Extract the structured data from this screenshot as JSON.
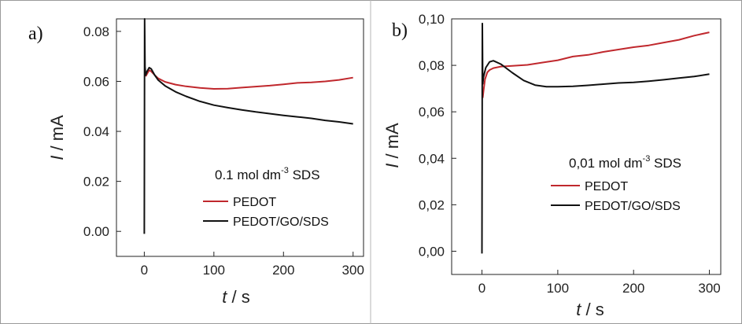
{
  "chart_data": [
    {
      "panel": "a)",
      "type": "line",
      "annotation": {
        "main": "0.1 mol dm",
        "sup": "-3",
        "tail": " SDS"
      },
      "xlabel": {
        "var": "t",
        "unit": " / s"
      },
      "ylabel": {
        "var": "I",
        "unit": " / mA"
      },
      "xlim": [
        -40,
        315
      ],
      "ylim": [
        -0.01,
        0.085
      ],
      "xticks": [
        {
          "v": 0,
          "label": "0"
        },
        {
          "v": 100,
          "label": "100"
        },
        {
          "v": 200,
          "label": "200"
        },
        {
          "v": 300,
          "label": "300"
        }
      ],
      "yticks": [
        {
          "v": 0.0,
          "label": "0.00"
        },
        {
          "v": 0.02,
          "label": "0.02"
        },
        {
          "v": 0.04,
          "label": "0.04"
        },
        {
          "v": 0.06,
          "label": "0.06"
        },
        {
          "v": 0.08,
          "label": "0.08"
        }
      ],
      "series": [
        {
          "name": "PEDOT",
          "color": "#c0282d",
          "points": [
            [
              2,
              0.062
            ],
            [
              4,
              0.063
            ],
            [
              7,
              0.0645
            ],
            [
              10,
              0.064
            ],
            [
              15,
              0.0625
            ],
            [
              20,
              0.0612
            ],
            [
              30,
              0.0598
            ],
            [
              45,
              0.0587
            ],
            [
              60,
              0.058
            ],
            [
              80,
              0.0574
            ],
            [
              100,
              0.057
            ],
            [
              120,
              0.0571
            ],
            [
              140,
              0.0575
            ],
            [
              160,
              0.0579
            ],
            [
              180,
              0.0583
            ],
            [
              200,
              0.0588
            ],
            [
              220,
              0.0594
            ],
            [
              240,
              0.0596
            ],
            [
              260,
              0.06
            ],
            [
              280,
              0.0606
            ],
            [
              300,
              0.0615
            ]
          ]
        },
        {
          "name": "PEDOT/GO/SDS",
          "color": "#111111",
          "points": [
            [
              0,
              -0.001
            ],
            [
              0.5,
              0.085
            ],
            [
              1,
              0.066
            ],
            [
              2,
              0.0625
            ],
            [
              4,
              0.064
            ],
            [
              7,
              0.0655
            ],
            [
              10,
              0.065
            ],
            [
              15,
              0.0625
            ],
            [
              20,
              0.0605
            ],
            [
              30,
              0.0582
            ],
            [
              45,
              0.0558
            ],
            [
              60,
              0.054
            ],
            [
              80,
              0.052
            ],
            [
              100,
              0.0505
            ],
            [
              120,
              0.0495
            ],
            [
              140,
              0.0486
            ],
            [
              160,
              0.0478
            ],
            [
              180,
              0.0471
            ],
            [
              200,
              0.0464
            ],
            [
              220,
              0.0458
            ],
            [
              240,
              0.0452
            ],
            [
              260,
              0.0444
            ],
            [
              280,
              0.0438
            ],
            [
              300,
              0.043
            ]
          ]
        }
      ]
    },
    {
      "panel": "b)",
      "type": "line",
      "annotation": {
        "main": "0,01 mol dm",
        "sup": "-3",
        "tail": " SDS"
      },
      "xlabel": {
        "var": "t",
        "unit": " / s"
      },
      "ylabel": {
        "var": "I",
        "unit": " / mA"
      },
      "xlim": [
        -40,
        315
      ],
      "ylim": [
        -0.01,
        0.1
      ],
      "xticks": [
        {
          "v": 0,
          "label": "0"
        },
        {
          "v": 100,
          "label": "100"
        },
        {
          "v": 200,
          "label": "200"
        },
        {
          "v": 300,
          "label": "300"
        }
      ],
      "yticks": [
        {
          "v": 0.0,
          "label": "0,00"
        },
        {
          "v": 0.02,
          "label": "0,02"
        },
        {
          "v": 0.04,
          "label": "0,04"
        },
        {
          "v": 0.06,
          "label": "0,06"
        },
        {
          "v": 0.08,
          "label": "0,08"
        },
        {
          "v": 0.1,
          "label": "0,10"
        }
      ],
      "series": [
        {
          "name": "PEDOT",
          "color": "#c0282d",
          "points": [
            [
              1,
              0.066
            ],
            [
              2,
              0.069
            ],
            [
              4,
              0.074
            ],
            [
              7,
              0.077
            ],
            [
              10,
              0.078
            ],
            [
              15,
              0.0788
            ],
            [
              25,
              0.0795
            ],
            [
              40,
              0.0798
            ],
            [
              60,
              0.0802
            ],
            [
              80,
              0.0812
            ],
            [
              100,
              0.0822
            ],
            [
              120,
              0.0838
            ],
            [
              140,
              0.0845
            ],
            [
              160,
              0.0858
            ],
            [
              180,
              0.0868
            ],
            [
              200,
              0.0878
            ],
            [
              220,
              0.0886
            ],
            [
              240,
              0.0898
            ],
            [
              260,
              0.091
            ],
            [
              280,
              0.0928
            ],
            [
              300,
              0.0942
            ]
          ]
        },
        {
          "name": "PEDOT/GO/SDS",
          "color": "#111111",
          "points": [
            [
              0,
              -0.001
            ],
            [
              0.5,
              0.098
            ],
            [
              1,
              0.072
            ],
            [
              2,
              0.075
            ],
            [
              5,
              0.079
            ],
            [
              10,
              0.0815
            ],
            [
              15,
              0.082
            ],
            [
              25,
              0.0805
            ],
            [
              40,
              0.0768
            ],
            [
              55,
              0.0735
            ],
            [
              70,
              0.0715
            ],
            [
              85,
              0.0708
            ],
            [
              100,
              0.0708
            ],
            [
              120,
              0.071
            ],
            [
              140,
              0.0714
            ],
            [
              160,
              0.0719
            ],
            [
              180,
              0.0724
            ],
            [
              200,
              0.0727
            ],
            [
              220,
              0.0732
            ],
            [
              240,
              0.0738
            ],
            [
              260,
              0.0745
            ],
            [
              280,
              0.0752
            ],
            [
              300,
              0.0762
            ]
          ]
        }
      ]
    }
  ]
}
